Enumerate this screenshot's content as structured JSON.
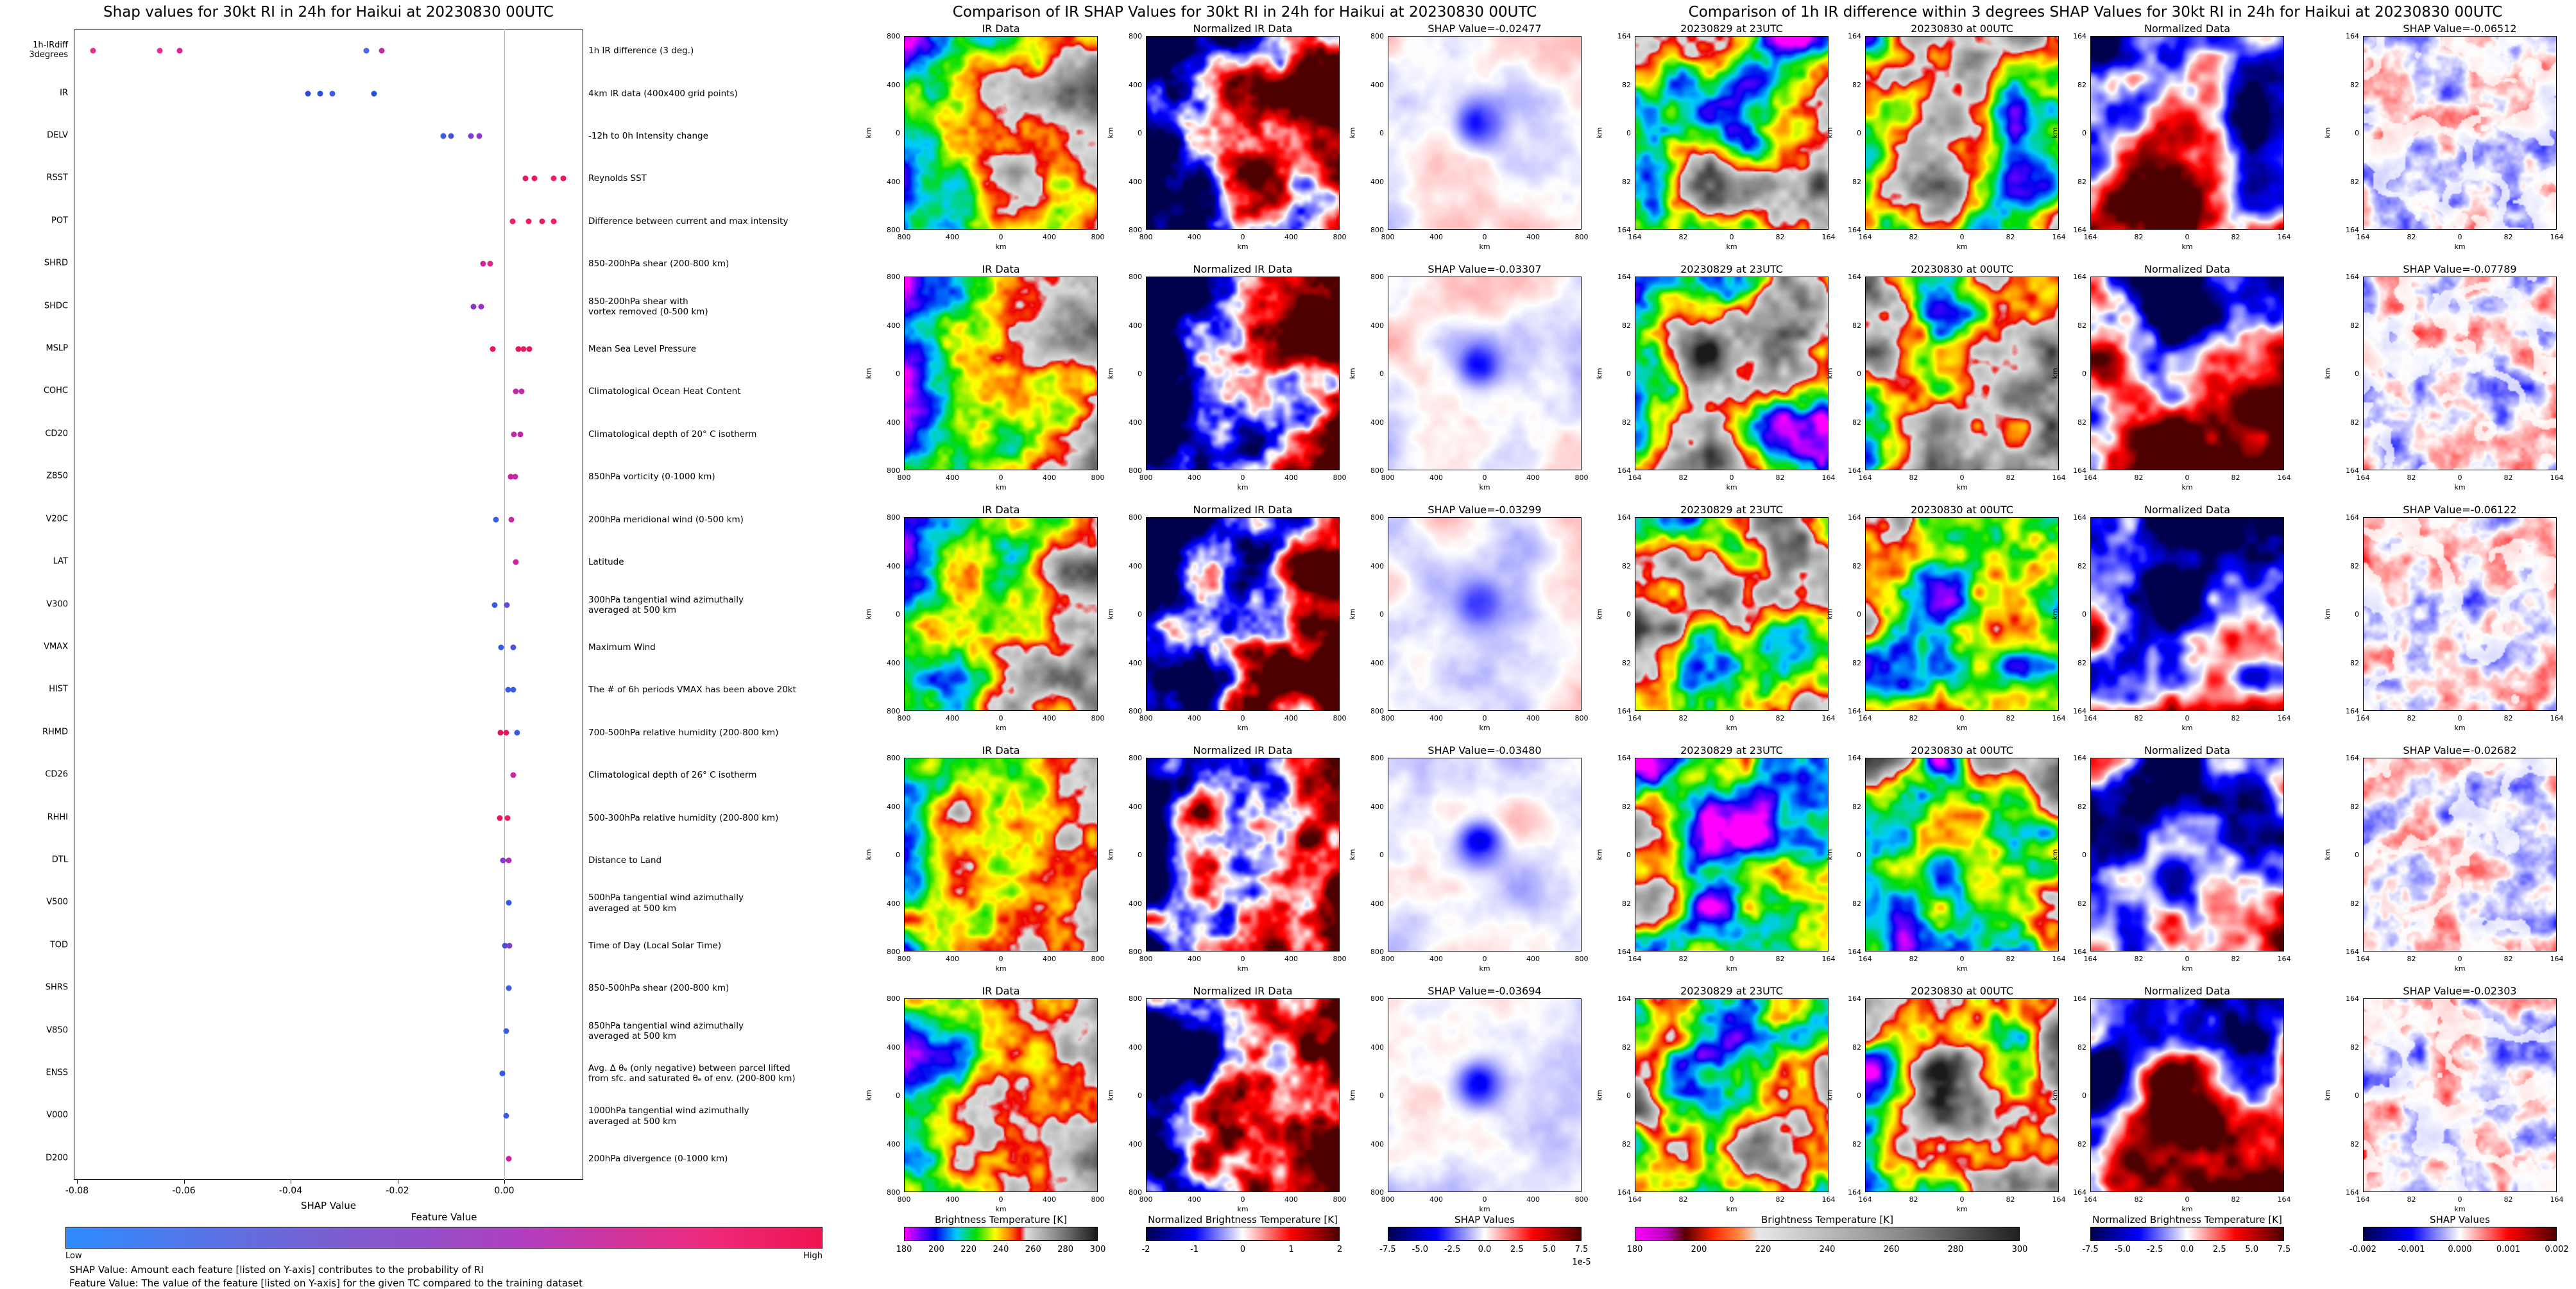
{
  "colormaps": {
    "ir_enhanced": [
      [
        0,
        "#ff00ff"
      ],
      [
        0.08,
        "#7700ff"
      ],
      [
        0.16,
        "#0000ee"
      ],
      [
        0.27,
        "#00ccff"
      ],
      [
        0.37,
        "#00dd00"
      ],
      [
        0.47,
        "#ffff00"
      ],
      [
        0.54,
        "#ff8800"
      ],
      [
        0.6,
        "#ee0000"
      ],
      [
        0.63,
        "#dddddd"
      ],
      [
        1,
        "#1a1a1a"
      ]
    ],
    "ir_diff": [
      [
        0,
        "#ff00ff"
      ],
      [
        0.08,
        "#bb00bb"
      ],
      [
        0.13,
        "#550000"
      ],
      [
        0.2,
        "#ff2200"
      ],
      [
        0.27,
        "#ff8844"
      ],
      [
        0.32,
        "#e8e8e8"
      ],
      [
        0.7,
        "#888888"
      ],
      [
        1,
        "#202020"
      ]
    ],
    "seismic": [
      [
        0,
        "#00004d"
      ],
      [
        0.25,
        "#0000ff"
      ],
      [
        0.5,
        "#ffffff"
      ],
      [
        0.75,
        "#ff0000"
      ],
      [
        1,
        "#4d0000"
      ]
    ],
    "feature_value": [
      [
        0,
        "#2e8bff"
      ],
      [
        0.35,
        "#7a5fd0"
      ],
      [
        0.6,
        "#b03fc0"
      ],
      [
        0.85,
        "#ee2a7b"
      ],
      [
        1,
        "#ef1450"
      ]
    ]
  },
  "chart_data": [
    {
      "type": "scatter",
      "title": "Shap values for 30kt RI in 24h for Haikui at 20230830 00UTC",
      "xlabel": "SHAP Value",
      "x_ticks": [
        "-0.08",
        "-0.06",
        "-0.04",
        "-0.02",
        "0.00"
      ],
      "xlim": [
        -0.0806,
        0.0148
      ],
      "colorbar": {
        "title": "Feature Value",
        "low_label": "Low",
        "high_label": "High",
        "cmap": "feature_value"
      },
      "footnotes": [
        "SHAP Value: Amount each feature [listed on Y-axis] contributes to the probability of RI",
        "Feature Value: The value of the feature [listed on Y-axis] for the given TC compared to the training dataset"
      ],
      "features": [
        {
          "name": "1h-IRdiff\n3degrees",
          "desc": "1h IR difference (3 deg.)",
          "points": [
            {
              "x": -0.077,
              "color": "#ec2d90"
            },
            {
              "x": -0.0645,
              "color": "#ec2d90"
            },
            {
              "x": -0.0608,
              "color": "#d6219c"
            },
            {
              "x": -0.0258,
              "color": "#4b63e6"
            },
            {
              "x": -0.023,
              "color": "#c32aa8"
            }
          ]
        },
        {
          "name": "IR",
          "desc": "4km IR data (400x400 grid points)",
          "points": [
            {
              "x": -0.0368,
              "color": "#2b4de0"
            },
            {
              "x": -0.0345,
              "color": "#2b4de0"
            },
            {
              "x": -0.0322,
              "color": "#3a5be8"
            },
            {
              "x": -0.0244,
              "color": "#2b4de0"
            }
          ]
        },
        {
          "name": "DELV",
          "desc": "-12h to 0h Intensity change",
          "points": [
            {
              "x": -0.0114,
              "color": "#3a5be8"
            },
            {
              "x": -0.01,
              "color": "#4a4fd8"
            },
            {
              "x": -0.0062,
              "color": "#7a3fd0"
            },
            {
              "x": -0.0047,
              "color": "#8a35cc"
            }
          ]
        },
        {
          "name": "RSST",
          "desc": "Reynolds SST",
          "points": [
            {
              "x": 0.004,
              "color": "#e8175d"
            },
            {
              "x": 0.0056,
              "color": "#e8175d"
            },
            {
              "x": 0.0092,
              "color": "#ee1e6e"
            },
            {
              "x": 0.011,
              "color": "#e8175d"
            }
          ]
        },
        {
          "name": "POT",
          "desc": "Difference between current and max intensity",
          "points": [
            {
              "x": 0.0016,
              "color": "#ea1e5e"
            },
            {
              "x": 0.0046,
              "color": "#ea1e5e"
            },
            {
              "x": 0.0071,
              "color": "#ea1e5e"
            },
            {
              "x": 0.0092,
              "color": "#ea1e5e"
            }
          ]
        },
        {
          "name": "SHRD",
          "desc": "850-200hPa shear (200-800 km)",
          "points": [
            {
              "x": -0.004,
              "color": "#d6219c"
            },
            {
              "x": -0.0026,
              "color": "#e12588"
            }
          ]
        },
        {
          "name": "SHDC",
          "desc": "850-200hPa shear with\nvortex removed (0-500 km)",
          "points": [
            {
              "x": -0.0058,
              "color": "#8a35cc"
            },
            {
              "x": -0.0043,
              "color": "#9a30c9"
            }
          ]
        },
        {
          "name": "MSLP",
          "desc": "Mean Sea Level Pressure",
          "points": [
            {
              "x": -0.0022,
              "color": "#e8175d"
            },
            {
              "x": 0.0026,
              "color": "#e8175d"
            },
            {
              "x": 0.0036,
              "color": "#ea1e5e"
            },
            {
              "x": 0.0047,
              "color": "#e8175d"
            }
          ]
        },
        {
          "name": "COHC",
          "desc": "Climatological Ocean Heat Content",
          "points": [
            {
              "x": 0.0022,
              "color": "#c32aa8"
            },
            {
              "x": 0.0033,
              "color": "#c32aa8"
            }
          ]
        },
        {
          "name": "CD20",
          "desc": "Climatological depth of 20° C isotherm",
          "points": [
            {
              "x": 0.0018,
              "color": "#c32aa8"
            },
            {
              "x": 0.003,
              "color": "#cc20a4"
            }
          ]
        },
        {
          "name": "Z850",
          "desc": "850hPa vorticity (0-1000 km)",
          "points": [
            {
              "x": 0.0012,
              "color": "#cc20a4"
            },
            {
              "x": 0.002,
              "color": "#c32aa8"
            }
          ]
        },
        {
          "name": "V20C",
          "desc": "200hPa meridional wind (0-500 km)",
          "points": [
            {
              "x": -0.0016,
              "color": "#3a5be8"
            },
            {
              "x": 0.0013,
              "color": "#c32aa8"
            }
          ]
        },
        {
          "name": "LAT",
          "desc": "Latitude",
          "points": [
            {
              "x": 0.0022,
              "color": "#cc20a4"
            }
          ]
        },
        {
          "name": "V300",
          "desc": "300hPa tangential wind azimuthally\naveraged at 500 km",
          "points": [
            {
              "x": -0.0018,
              "color": "#3a5be8"
            },
            {
              "x": 0.0005,
              "color": "#6a48d4"
            }
          ]
        },
        {
          "name": "VMAX",
          "desc": "Maximum Wind",
          "points": [
            {
              "x": -0.0006,
              "color": "#3a5be8"
            },
            {
              "x": 0.0017,
              "color": "#4a4fd8"
            }
          ]
        },
        {
          "name": "HIST",
          "desc": "The # of 6h periods VMAX has been above 20kt",
          "points": [
            {
              "x": 0.0007,
              "color": "#3a5be8"
            },
            {
              "x": 0.0017,
              "color": "#3a5be8"
            }
          ]
        },
        {
          "name": "RHMD",
          "desc": "700-500hPa relative humidity (200-800 km)",
          "points": [
            {
              "x": -0.0007,
              "color": "#e8175d"
            },
            {
              "x": 0.0004,
              "color": "#e8175d"
            },
            {
              "x": 0.0024,
              "color": "#3a5be8"
            }
          ]
        },
        {
          "name": "CD26",
          "desc": "Climatological depth of 26° C isotherm",
          "points": [
            {
              "x": 0.0017,
              "color": "#c32aa8"
            }
          ]
        },
        {
          "name": "RHHI",
          "desc": "500-300hPa relative humidity (200-800 km)",
          "points": [
            {
              "x": -0.0009,
              "color": "#e8175d"
            },
            {
              "x": 0.0006,
              "color": "#ea1e5e"
            }
          ]
        },
        {
          "name": "DTL",
          "desc": "Distance to Land",
          "points": [
            {
              "x": -0.0003,
              "color": "#8a35cc"
            },
            {
              "x": 0.0009,
              "color": "#b02cba"
            }
          ]
        },
        {
          "name": "V500",
          "desc": "500hPa tangential wind azimuthally\naveraged at 500 km",
          "points": [
            {
              "x": 0.0009,
              "color": "#3a5be8"
            }
          ]
        },
        {
          "name": "TOD",
          "desc": "Time of Day (Local Solar Time)",
          "points": [
            {
              "x": 0.0001,
              "color": "#4a4fd8"
            },
            {
              "x": 0.001,
              "color": "#7a3fd0"
            }
          ]
        },
        {
          "name": "SHRS",
          "desc": "850-500hPa shear (200-800 km)",
          "points": [
            {
              "x": 0.0009,
              "color": "#3a5be8"
            }
          ]
        },
        {
          "name": "V850",
          "desc": "850hPa tangential wind azimuthally\naveraged at 500 km",
          "points": [
            {
              "x": 0.0004,
              "color": "#3a5be8"
            }
          ]
        },
        {
          "name": "ENSS",
          "desc": "Avg. Δ θₑ (only negative) between parcel lifted\nfrom sfc. and saturated θₑ of env. (200-800 km)",
          "points": [
            {
              "x": -0.0004,
              "color": "#3a5be8"
            }
          ]
        },
        {
          "name": "V000",
          "desc": "1000hPa tangential wind azimuthally\naveraged at 500 km",
          "points": [
            {
              "x": 0.0004,
              "color": "#3a5be8"
            }
          ]
        },
        {
          "name": "D200",
          "desc": "200hPa divergence (0-1000 km)",
          "points": [
            {
              "x": 0.0009,
              "color": "#cc20a4"
            }
          ]
        }
      ]
    },
    {
      "type": "heatmap",
      "title": "Comparison of IR SHAP Values for 30kt RI in 24h for Haikui at 20230830 00UTC",
      "axis_label": "km",
      "axis_ticks": [
        "800",
        "400",
        "0",
        "400",
        "800"
      ],
      "shap_values": [
        -0.02477,
        -0.03307,
        -0.03299,
        -0.0348,
        -0.03694
      ],
      "rows": [
        [
          "IR Data",
          "Normalized IR Data",
          "SHAP Value=-0.02477"
        ],
        [
          "IR Data",
          "Normalized IR Data",
          "SHAP Value=-0.03307"
        ],
        [
          "IR Data",
          "Normalized IR Data",
          "SHAP Value=-0.03299"
        ],
        [
          "IR Data",
          "Normalized IR Data",
          "SHAP Value=-0.03480"
        ],
        [
          "IR Data",
          "Normalized IR Data",
          "SHAP Value=-0.03694"
        ]
      ],
      "colorbars": [
        {
          "title": "Brightness Temperature [K]",
          "ticks": [
            "180",
            "200",
            "220",
            "240",
            "260",
            "280",
            "300"
          ],
          "cmap": "ir_enhanced"
        },
        {
          "title": "Normalized Brightness Temperature [K]",
          "ticks": [
            "-2",
            "-1",
            "0",
            "1",
            "2"
          ],
          "cmap": "seismic"
        },
        {
          "title": "SHAP Values",
          "ticks": [
            "-7.5",
            "-5.0",
            "-2.5",
            "0.0",
            "2.5",
            "5.0",
            "7.5"
          ],
          "cmap": "seismic",
          "exponent": "1e-5"
        }
      ]
    },
    {
      "type": "heatmap",
      "title": "Comparison of 1h IR difference within 3 degrees SHAP Values for 30kt RI in 24h for Haikui at 20230830 00UTC",
      "axis_label": "km",
      "axis_ticks": [
        "164",
        "82",
        "0",
        "82",
        "164"
      ],
      "shap_values": [
        -0.06512,
        -0.07789,
        -0.06122,
        -0.02682,
        -0.02303
      ],
      "rows": [
        [
          "20230829 at 23UTC",
          "20230830 at 00UTC",
          "Normalized Data",
          "SHAP Value=-0.06512"
        ],
        [
          "20230829 at 23UTC",
          "20230830 at 00UTC",
          "Normalized Data",
          "SHAP Value=-0.07789"
        ],
        [
          "20230829 at 23UTC",
          "20230830 at 00UTC",
          "Normalized Data",
          "SHAP Value=-0.06122"
        ],
        [
          "20230829 at 23UTC",
          "20230830 at 00UTC",
          "Normalized Data",
          "SHAP Value=-0.02682"
        ],
        [
          "20230829 at 23UTC",
          "20230830 at 00UTC",
          "Normalized Data",
          "SHAP Value=-0.02303"
        ]
      ],
      "colorbars": [
        {
          "title": "Brightness Temperature [K]",
          "ticks": [
            "180",
            "200",
            "220",
            "240",
            "260",
            "280",
            "300"
          ],
          "cmap": "ir_diff"
        },
        {
          "title": "Normalized Brightness Temperature [K]",
          "ticks": [
            "-7.5",
            "-5.0",
            "-2.5",
            "0.0",
            "2.5",
            "5.0",
            "7.5"
          ],
          "cmap": "seismic"
        },
        {
          "title": "SHAP Values",
          "ticks": [
            "-0.002",
            "-0.001",
            "0.000",
            "0.001",
            "0.002"
          ],
          "cmap": "seismic"
        }
      ]
    }
  ]
}
